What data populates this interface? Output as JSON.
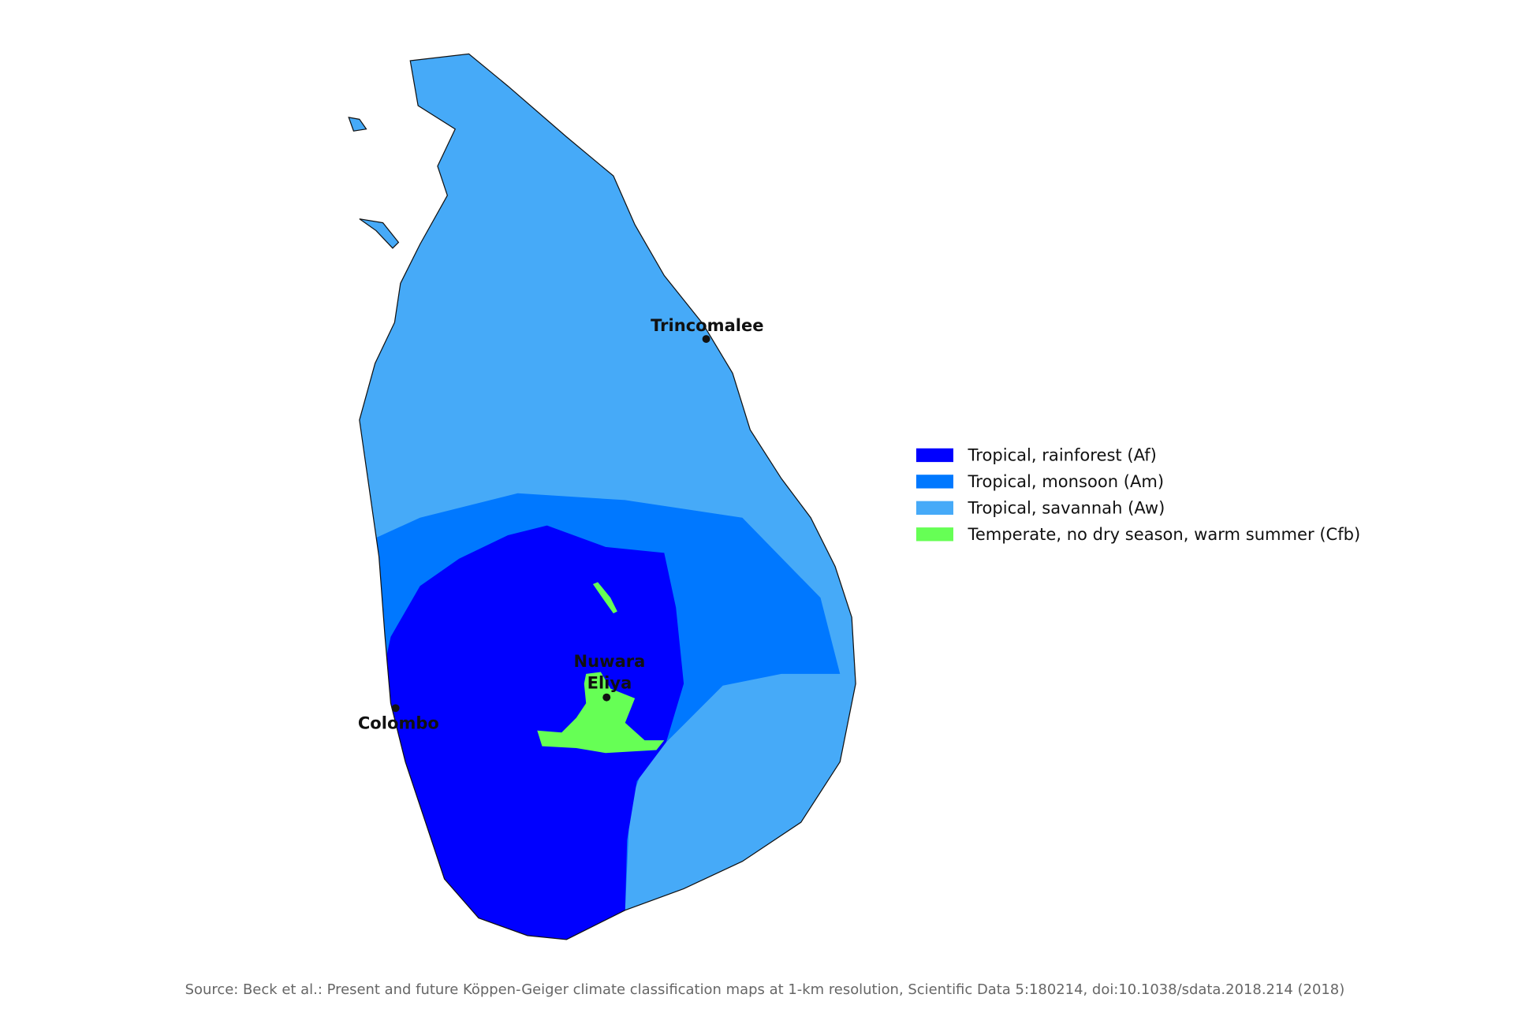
{
  "cities": [
    {
      "lines": [
        "Trincomalee"
      ]
    },
    {
      "lines": [
        "Nuwara",
        "Eliya"
      ]
    },
    {
      "lines": [
        "Colombo"
      ]
    }
  ],
  "legend": {
    "items": [
      {
        "label": "Tropical, rainforest (Af)",
        "color": "#0000ff"
      },
      {
        "label": "Tropical, monsoon (Am)",
        "color": "#0078ff"
      },
      {
        "label": "Tropical, savannah (Aw)",
        "color": "#46aaf8"
      },
      {
        "label": "Temperate, no dry season, warm summer (Cfb)",
        "color": "#66ff55"
      }
    ]
  },
  "source": "Source: Beck et al.: Present and future Köppen-Geiger climate classification maps at 1-km resolution, Scientific Data 5:180214, doi:10.1038/sdata.2018.214 (2018)"
}
